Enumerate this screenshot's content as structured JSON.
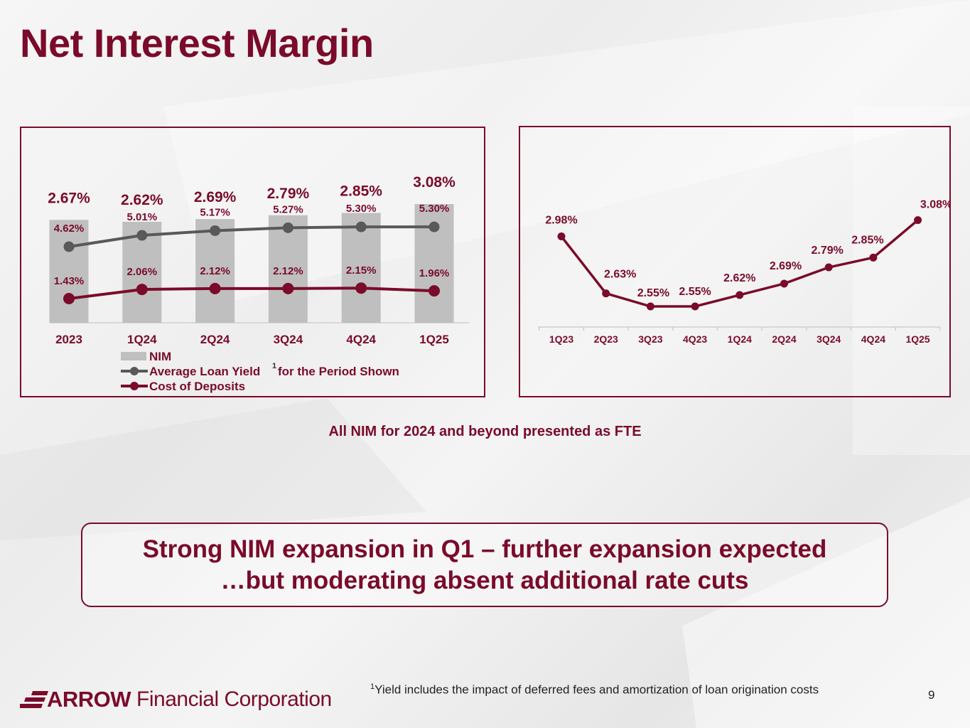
{
  "title": "Net Interest Margin",
  "colors": {
    "brand": "#7a0b2a",
    "nim_bar": "#bfbfbf",
    "loan_yield": "#595959",
    "cost_deposits": "#7a0b2a"
  },
  "chart_data": [
    {
      "type": "bar+line",
      "categories": [
        "2023",
        "1Q24",
        "2Q24",
        "3Q24",
        "4Q24",
        "1Q25"
      ],
      "series": [
        {
          "name": "NIM",
          "type": "bar",
          "values": [
            2.67,
            2.62,
            2.69,
            2.79,
            2.85,
            3.08
          ],
          "labels": [
            "2.67%",
            "2.62%",
            "2.69%",
            "2.79%",
            "2.85%",
            "3.08%"
          ]
        },
        {
          "name": "Average Loan Yield for the Period Shown",
          "type": "line",
          "values": [
            4.62,
            5.01,
            5.17,
            5.27,
            5.3,
            5.3
          ],
          "labels": [
            "4.62%",
            "5.01%",
            "5.17%",
            "5.27%",
            "5.30%",
            "5.30%"
          ]
        },
        {
          "name": "Cost of Deposits",
          "type": "line",
          "values": [
            1.43,
            2.06,
            2.12,
            2.12,
            2.15,
            1.96
          ],
          "labels": [
            "1.43%",
            "2.06%",
            "2.12%",
            "2.12%",
            "2.15%",
            "1.96%"
          ]
        }
      ],
      "legend": {
        "position": "bottom",
        "entries": [
          "NIM",
          "Average Loan Yield",
          "for the Period Shown",
          "Cost of Deposits"
        ],
        "footnote_marker": "1"
      }
    },
    {
      "type": "line",
      "categories": [
        "1Q23",
        "2Q23",
        "3Q23",
        "4Q23",
        "1Q24",
        "2Q24",
        "3Q24",
        "4Q24",
        "1Q25"
      ],
      "series": [
        {
          "values": [
            2.98,
            2.63,
            2.55,
            2.55,
            2.62,
            2.69,
            2.79,
            2.85,
            3.08
          ],
          "labels": [
            "2.98%",
            "2.63%",
            "2.55%",
            "2.55%",
            "2.62%",
            "2.69%",
            "2.79%",
            "2.85%",
            "3.08%"
          ]
        }
      ],
      "ylim": [
        2.55,
        3.08
      ],
      "legend": "none"
    }
  ],
  "note": "All NIM  for 2024 and beyond presented as FTE",
  "callout": {
    "line1": "Strong NIM expansion in Q1 – further expansion expected",
    "line2": "…but moderating absent additional rate cuts"
  },
  "footnote": {
    "marker": "1",
    "text": "Yield includes the impact of deferred fees and amortization of loan origination costs"
  },
  "page_number": "9",
  "logo": {
    "brand": "ARROW",
    "rest": "Financial Corporation"
  }
}
